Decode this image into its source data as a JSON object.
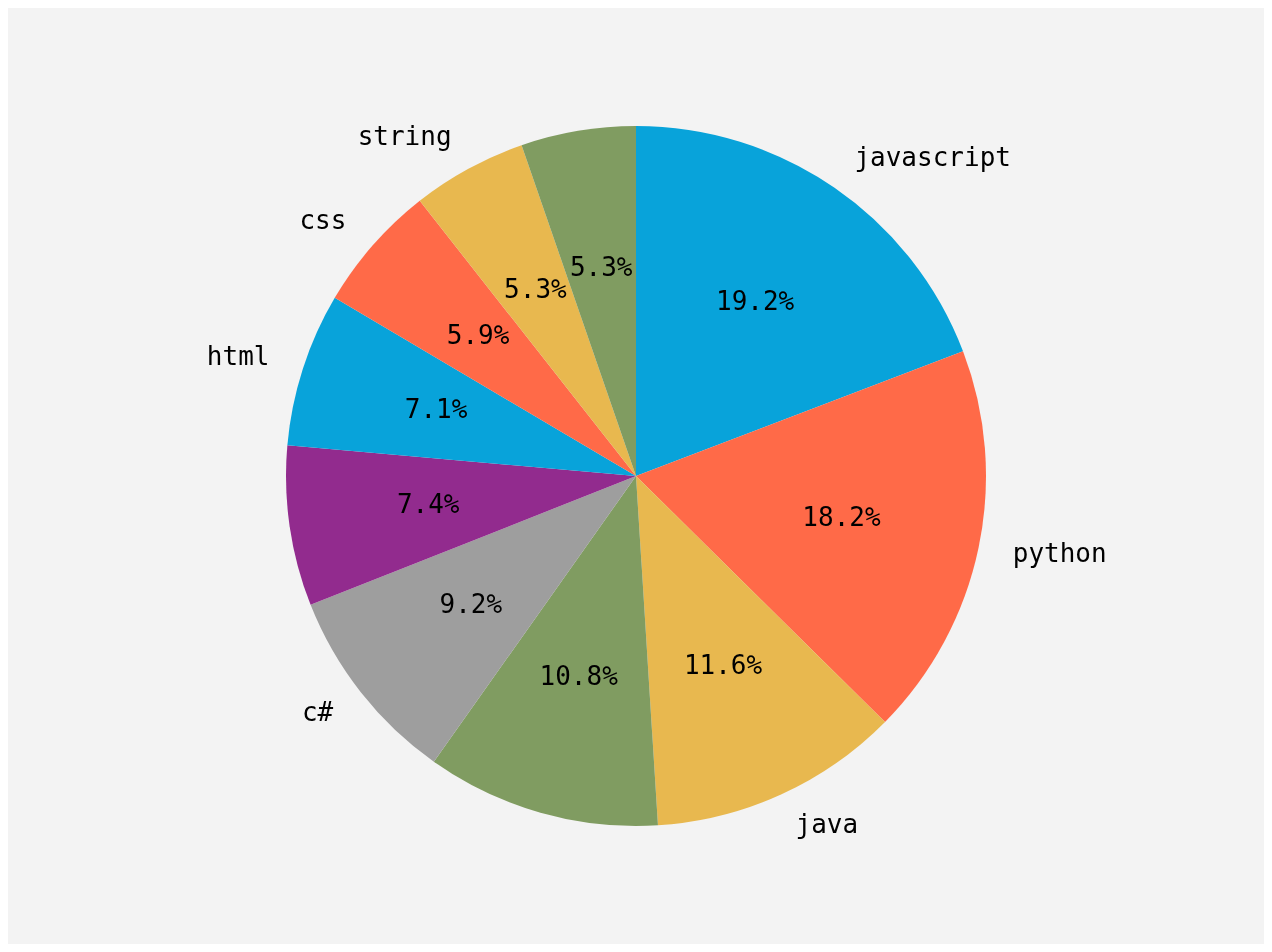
{
  "chart_data": {
    "type": "pie",
    "categories": [
      "javascript",
      "python",
      "java",
      null,
      "c#",
      null,
      "html",
      "css",
      "string",
      null
    ],
    "values": [
      19.2,
      18.2,
      11.6,
      10.8,
      9.2,
      7.4,
      7.1,
      5.9,
      5.3,
      5.3
    ],
    "colors": [
      "#08a3da",
      "#ff6a48",
      "#e8b84f",
      "#809c61",
      "#9e9e9e",
      "#922b8e",
      "#08a3da",
      "#ff6a48",
      "#e8b84f",
      "#809c61"
    ],
    "value_labels": [
      "19.2%",
      "18.2%",
      "11.6%",
      "10.8%",
      "9.2%",
      "7.4%",
      "7.1%",
      "5.9%",
      "5.3%",
      "5.3%"
    ],
    "legend": false
  }
}
